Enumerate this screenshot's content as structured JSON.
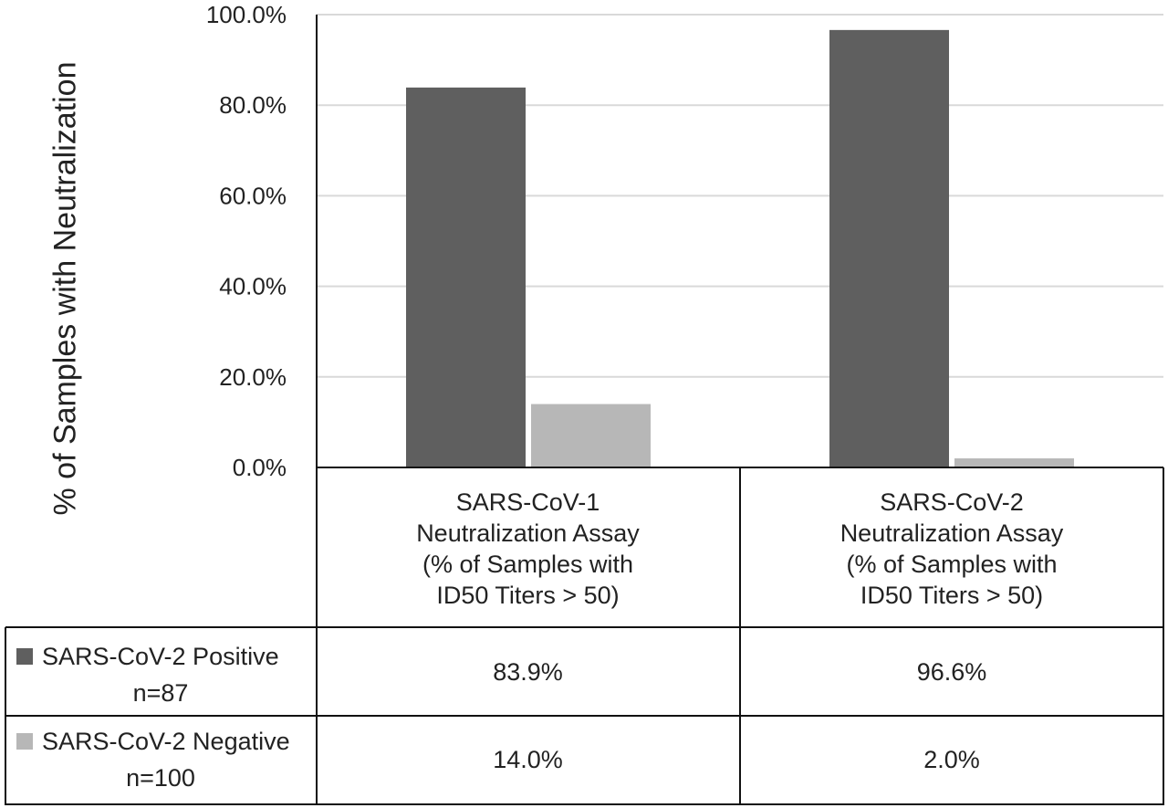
{
  "chart_data": {
    "type": "bar",
    "ylabel": "% of Samples with Neutralization",
    "ylim": [
      0,
      100
    ],
    "y_ticks": [
      "0.0%",
      "20.0%",
      "40.0%",
      "60.0%",
      "80.0%",
      "100.0%"
    ],
    "grid": true,
    "categories": [
      [
        "SARS-CoV-1",
        "Neutralization Assay",
        "(% of Samples with",
        "ID50 Titers > 50)"
      ],
      [
        "SARS-CoV-2",
        "Neutralization Assay",
        "(% of Samples with",
        "ID50 Titers > 50)"
      ]
    ],
    "series": [
      {
        "name": "SARS-CoV-2 Positive",
        "n_label": "n=87",
        "color": "#5f5f5f",
        "values": [
          83.9,
          96.6
        ],
        "labels": [
          "83.9%",
          "96.6%"
        ]
      },
      {
        "name": "SARS-CoV-2 Negative",
        "n_label": "n=100",
        "color": "#b7b7b7",
        "values": [
          14.0,
          2.0
        ],
        "labels": [
          "14.0%",
          "2.0%"
        ]
      }
    ],
    "legend": "data-table"
  }
}
